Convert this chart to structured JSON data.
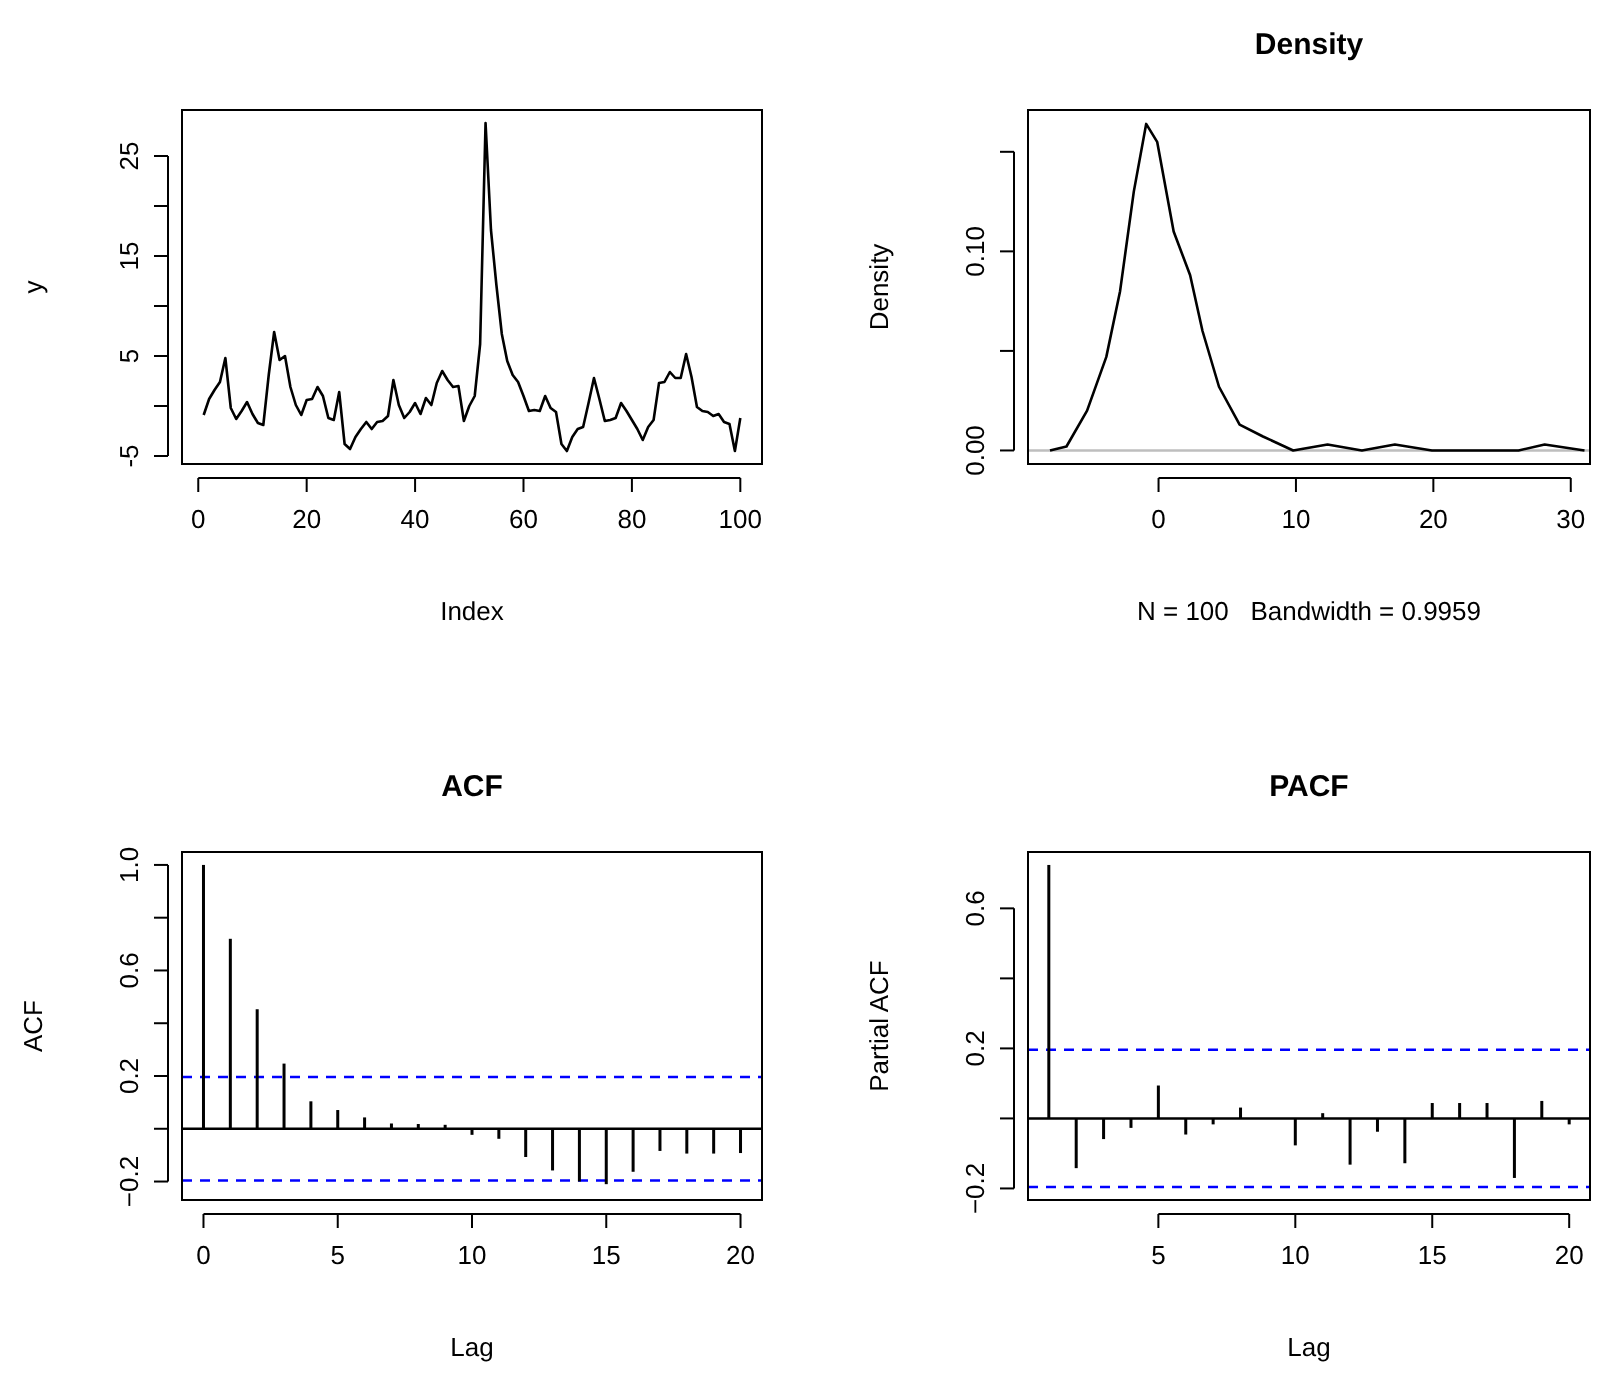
{
  "chart_data": [
    {
      "type": "line",
      "xlabel": "Index",
      "ylabel": "y",
      "color": "#000000",
      "x": [
        1,
        2,
        3,
        4,
        5,
        6,
        7,
        8,
        9,
        10,
        11,
        12,
        13,
        14,
        15,
        16,
        17,
        18,
        19,
        20,
        21,
        22,
        23,
        24,
        25,
        26,
        27,
        28,
        29,
        30,
        31,
        32,
        33,
        34,
        35,
        36,
        37,
        38,
        39,
        40,
        41,
        42,
        43,
        44,
        45,
        46,
        47,
        48,
        49,
        50,
        51,
        52,
        53,
        54,
        55,
        56,
        57,
        58,
        59,
        60,
        61,
        62,
        63,
        64,
        65,
        66,
        67,
        68,
        69,
        70,
        71,
        72,
        73,
        74,
        75,
        76,
        77,
        78,
        79,
        80,
        81,
        82,
        83,
        84,
        85,
        86,
        87,
        88,
        89,
        90,
        91,
        92,
        93,
        94,
        95,
        96,
        97,
        98,
        99,
        100
      ],
      "values": [
        -0.9,
        0.7,
        1.6,
        2.4,
        4.8,
        -0.2,
        -1.3,
        -0.5,
        0.4,
        -0.8,
        -1.7,
        -1.9,
        3.1,
        7.4,
        4.6,
        5.0,
        1.9,
        0.1,
        -0.9,
        0.6,
        0.7,
        1.9,
        1.0,
        -1.2,
        -1.4,
        1.4,
        -3.8,
        -4.3,
        -3.1,
        -2.3,
        -1.6,
        -2.3,
        -1.6,
        -1.5,
        -1.0,
        2.6,
        0.1,
        -1.2,
        -0.6,
        0.3,
        -0.8,
        0.8,
        0.1,
        2.3,
        3.5,
        2.6,
        1.9,
        2.0,
        -1.5,
        0.0,
        1.0,
        6.2,
        28.3,
        17.6,
        12.1,
        7.2,
        4.5,
        3.1,
        2.4,
        1.0,
        -0.5,
        -0.4,
        -0.5,
        1.0,
        -0.2,
        -0.6,
        -3.8,
        -4.5,
        -3.1,
        -2.3,
        -2.1,
        0.3,
        2.8,
        0.7,
        -1.5,
        -1.4,
        -1.2,
        0.3,
        -0.5,
        -1.4,
        -2.3,
        -3.4,
        -2.1,
        -1.4,
        2.3,
        2.4,
        3.4,
        2.8,
        2.8,
        5.2,
        2.9,
        -0.1,
        -0.5,
        -0.6,
        -1.0,
        -0.8,
        -1.6,
        -1.8,
        -4.5,
        -1.2
      ],
      "xlim": [
        -3,
        104
      ],
      "ylim": [
        -5.8,
        29.6
      ],
      "xticks": [
        0,
        20,
        40,
        60,
        80,
        100
      ],
      "yticks": [
        -5,
        {
          "value": 0,
          "label": null
        },
        5,
        {
          "value": 10,
          "label": null
        },
        15,
        {
          "value": 20,
          "label": null
        },
        25
      ]
    },
    {
      "type": "line",
      "title": "Density",
      "xlabel": "N = 100   Bandwidth = 0.9959",
      "ylabel": "Density",
      "color": "#000000",
      "x": [
        -7.9,
        -6.7,
        -5.2,
        -3.8,
        -2.8,
        -1.8,
        -0.9,
        -0.1,
        1.1,
        2.3,
        3.2,
        4.4,
        5.9,
        7.6,
        9.8,
        12.3,
        14.8,
        17.2,
        19.9,
        26.2,
        28.1,
        31
      ],
      "values": [
        0,
        0.002,
        0.02,
        0.047,
        0.08,
        0.13,
        0.164,
        0.155,
        0.11,
        0.088,
        0.06,
        0.032,
        0.013,
        0.007,
        0,
        0.003,
        0,
        0.003,
        0,
        0,
        0.003,
        0
      ],
      "xlim": [
        -9.5,
        31.4
      ],
      "ylim": [
        -0.0068,
        0.171
      ],
      "xticks": [
        0,
        10,
        20,
        30
      ],
      "yticks": [
        {
          "value": 0,
          "label": "0.00"
        },
        {
          "value": 0.05,
          "label": null
        },
        {
          "value": 0.1,
          "label": "0.10"
        },
        {
          "value": 0.15,
          "label": null
        }
      ],
      "ref_lines": [
        {
          "axis": "y",
          "value": 0,
          "color": "#bebebe",
          "line_style": "solid"
        }
      ]
    },
    {
      "type": "bar",
      "title": "ACF",
      "xlabel": "Lag",
      "ylabel": "ACF",
      "color": "#000000",
      "x": [
        0,
        1,
        2,
        3,
        4,
        5,
        6,
        7,
        8,
        9,
        10,
        11,
        12,
        13,
        14,
        15,
        16,
        17,
        18,
        19,
        20
      ],
      "values": [
        1.0,
        0.72,
        0.453,
        0.247,
        0.104,
        0.071,
        0.043,
        0.02,
        0.018,
        0.015,
        -0.023,
        -0.038,
        -0.107,
        -0.158,
        -0.2,
        -0.21,
        -0.163,
        -0.084,
        -0.094,
        -0.094,
        -0.092
      ],
      "xlim": [
        -0.8,
        20.8
      ],
      "ylim": [
        -0.27,
        1.049
      ],
      "xticks": [
        0,
        5,
        10,
        15,
        20
      ],
      "yticks": [
        {
          "value": -0.2,
          "label": "−0.2"
        },
        {
          "value": 0,
          "label": null
        },
        0.2,
        {
          "value": 0.4,
          "label": null
        },
        0.6,
        {
          "value": 0.8,
          "label": null
        },
        {
          "value": 1.0,
          "label": "1.0"
        }
      ],
      "ref_lines": [
        {
          "axis": "y",
          "value": 0,
          "color": "#000000",
          "line_style": "solid"
        },
        {
          "axis": "y",
          "value": 0.196,
          "color": "#0000ff",
          "line_style": "dashed"
        },
        {
          "axis": "y",
          "value": -0.196,
          "color": "#0000ff",
          "line_style": "dashed"
        }
      ]
    },
    {
      "type": "bar",
      "title": "PACF",
      "xlabel": "Lag",
      "ylabel": "Partial ACF",
      "color": "#000000",
      "x": [
        1,
        2,
        3,
        4,
        5,
        6,
        7,
        8,
        9,
        10,
        11,
        12,
        13,
        14,
        15,
        16,
        17,
        18,
        19,
        20
      ],
      "values": [
        0.724,
        -0.142,
        -0.059,
        -0.027,
        0.094,
        -0.046,
        -0.017,
        0.031,
        null,
        -0.077,
        0.015,
        -0.132,
        -0.038,
        -0.128,
        0.044,
        0.044,
        0.044,
        -0.17,
        0.05,
        -0.017
      ],
      "xlim": [
        0.24,
        20.76
      ],
      "ylim": [
        -0.233,
        0.761
      ],
      "xticks": [
        5,
        10,
        15,
        20
      ],
      "yticks": [
        {
          "value": -0.2,
          "label": "−0.2"
        },
        {
          "value": 0,
          "label": null
        },
        0.2,
        {
          "value": 0.4,
          "label": null
        },
        0.6
      ],
      "ref_lines": [
        {
          "axis": "y",
          "value": 0,
          "color": "#000000",
          "line_style": "solid"
        },
        {
          "axis": "y",
          "value": 0.196,
          "color": "#0000ff",
          "line_style": "dashed"
        },
        {
          "axis": "y",
          "value": -0.196,
          "color": "#0000ff",
          "line_style": "dashed"
        }
      ]
    }
  ]
}
